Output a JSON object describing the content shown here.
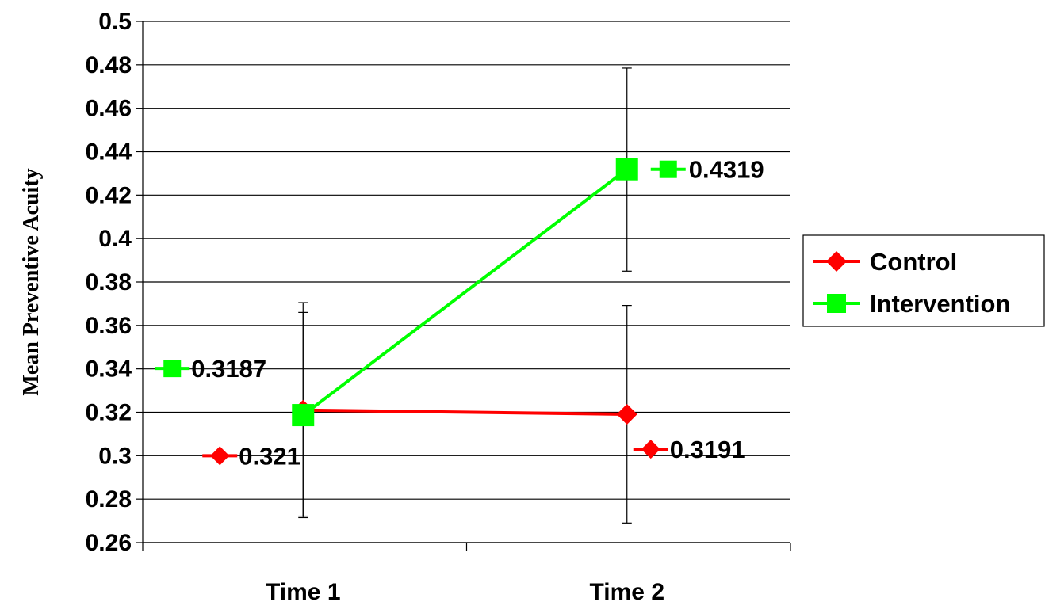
{
  "chart_data": {
    "type": "line",
    "categories": [
      "Time 1",
      "Time 2"
    ],
    "ylabel": "Mean Preventive Acuity",
    "ylim": [
      0.26,
      0.5
    ],
    "yticks": [
      "0.26",
      "0.28",
      "0.3",
      "0.32",
      "0.34",
      "0.36",
      "0.38",
      "0.4",
      "0.42",
      "0.44",
      "0.46",
      "0.48",
      "0.5"
    ],
    "grid": true,
    "legend_position": "right",
    "series": [
      {
        "name": "Control",
        "color": "#ff0000",
        "marker": "diamond",
        "values": [
          0.321,
          0.3191
        ],
        "labels": [
          "0.321",
          "0.3191"
        ],
        "error_low": [
          0.2715,
          0.269
        ],
        "error_high": [
          0.3705,
          0.3692
        ]
      },
      {
        "name": "Intervention",
        "color": "#00ff00",
        "marker": "square",
        "values": [
          0.3187,
          0.4319
        ],
        "labels": [
          "0.3187",
          "0.4319"
        ],
        "error_low": [
          0.2722,
          0.385
        ],
        "error_high": [
          0.366,
          0.4785
        ]
      }
    ]
  }
}
